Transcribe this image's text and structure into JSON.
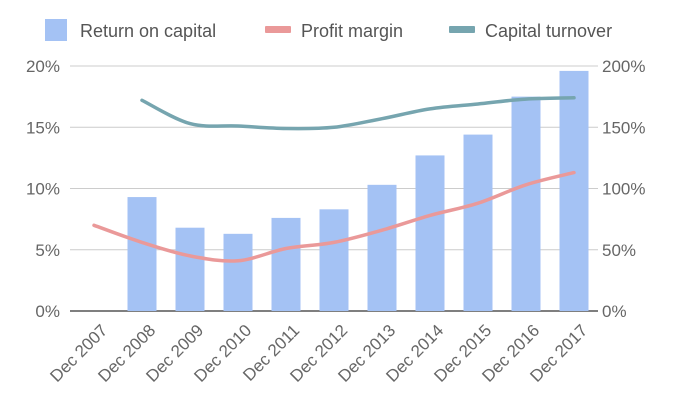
{
  "chart_data": {
    "type": "bar",
    "categories": [
      "Dec 2007",
      "Dec 2008",
      "Dec 2009",
      "Dec 2010",
      "Dec 2011",
      "Dec 2012",
      "Dec 2013",
      "Dec 2014",
      "Dec 2015",
      "Dec 2016",
      "Dec 2017"
    ],
    "series": [
      {
        "name": "Return on capital",
        "kind": "bar",
        "axis": "left",
        "color": "#a4c2f4",
        "values": [
          null,
          9.3,
          6.8,
          6.3,
          7.6,
          8.3,
          10.3,
          12.7,
          14.4,
          17.5,
          19.6
        ]
      },
      {
        "name": "Profit margin",
        "kind": "line",
        "axis": "left",
        "color": "#ea9999",
        "values": [
          7.0,
          5.6,
          4.5,
          4.1,
          5.1,
          5.6,
          6.6,
          7.8,
          8.8,
          10.3,
          11.3
        ]
      },
      {
        "name": "Capital turnover",
        "kind": "line",
        "axis": "right",
        "color": "#76a5af",
        "values": [
          null,
          172,
          153,
          151,
          149,
          150,
          157,
          165,
          169,
          173,
          174
        ]
      }
    ],
    "y_left": {
      "min": 0,
      "max": 20,
      "ticks": [
        "0%",
        "5%",
        "10%",
        "15%",
        "20%"
      ],
      "tick_values": [
        0,
        5,
        10,
        15,
        20
      ]
    },
    "y_right": {
      "min": 0,
      "max": 200,
      "ticks": [
        "0%",
        "50%",
        "100%",
        "150%",
        "200%"
      ],
      "tick_values": [
        0,
        50,
        100,
        150,
        200
      ]
    },
    "grid": true,
    "legend": "top"
  }
}
